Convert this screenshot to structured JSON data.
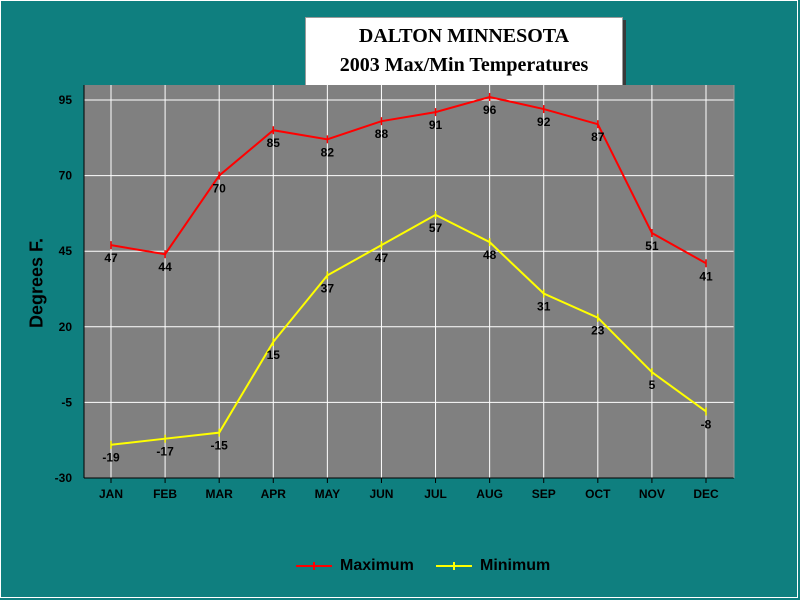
{
  "title": {
    "line1": "DALTON MINNESOTA",
    "line2": "2003 Max/Min Temperatures"
  },
  "chart_data": {
    "type": "line",
    "title": "DALTON MINNESOTA 2003 Max/Min Temperatures",
    "xlabel": "",
    "ylabel": "Degrees F.",
    "categories": [
      "JAN",
      "FEB",
      "MAR",
      "APR",
      "MAY",
      "JUN",
      "JUL",
      "AUG",
      "SEP",
      "OCT",
      "NOV",
      "DEC"
    ],
    "yticks": [
      95,
      70,
      45,
      20,
      -5,
      -30
    ],
    "ylim": [
      -30,
      100
    ],
    "grid": true,
    "legend_position": "bottom",
    "series": [
      {
        "name": "Maximum",
        "color": "#ff0000",
        "values": [
          47,
          44,
          70,
          85,
          82,
          88,
          91,
          96,
          92,
          87,
          51,
          41
        ],
        "labels": [
          "47",
          "44",
          "70",
          "85",
          "82",
          "88",
          "91",
          "96",
          "92",
          "87",
          "51",
          "41"
        ]
      },
      {
        "name": "Minimum",
        "color": "#ffff00",
        "values": [
          -19,
          -17,
          -15,
          15,
          37,
          47,
          57,
          48,
          31,
          23,
          5,
          -8
        ],
        "labels": [
          "-19",
          "-17",
          "-15",
          "15",
          "37",
          "47",
          "57",
          "48",
          "31",
          "23",
          "5",
          "-8"
        ]
      }
    ],
    "plot_background": "#808080",
    "page_background": "#0f7f7f"
  }
}
